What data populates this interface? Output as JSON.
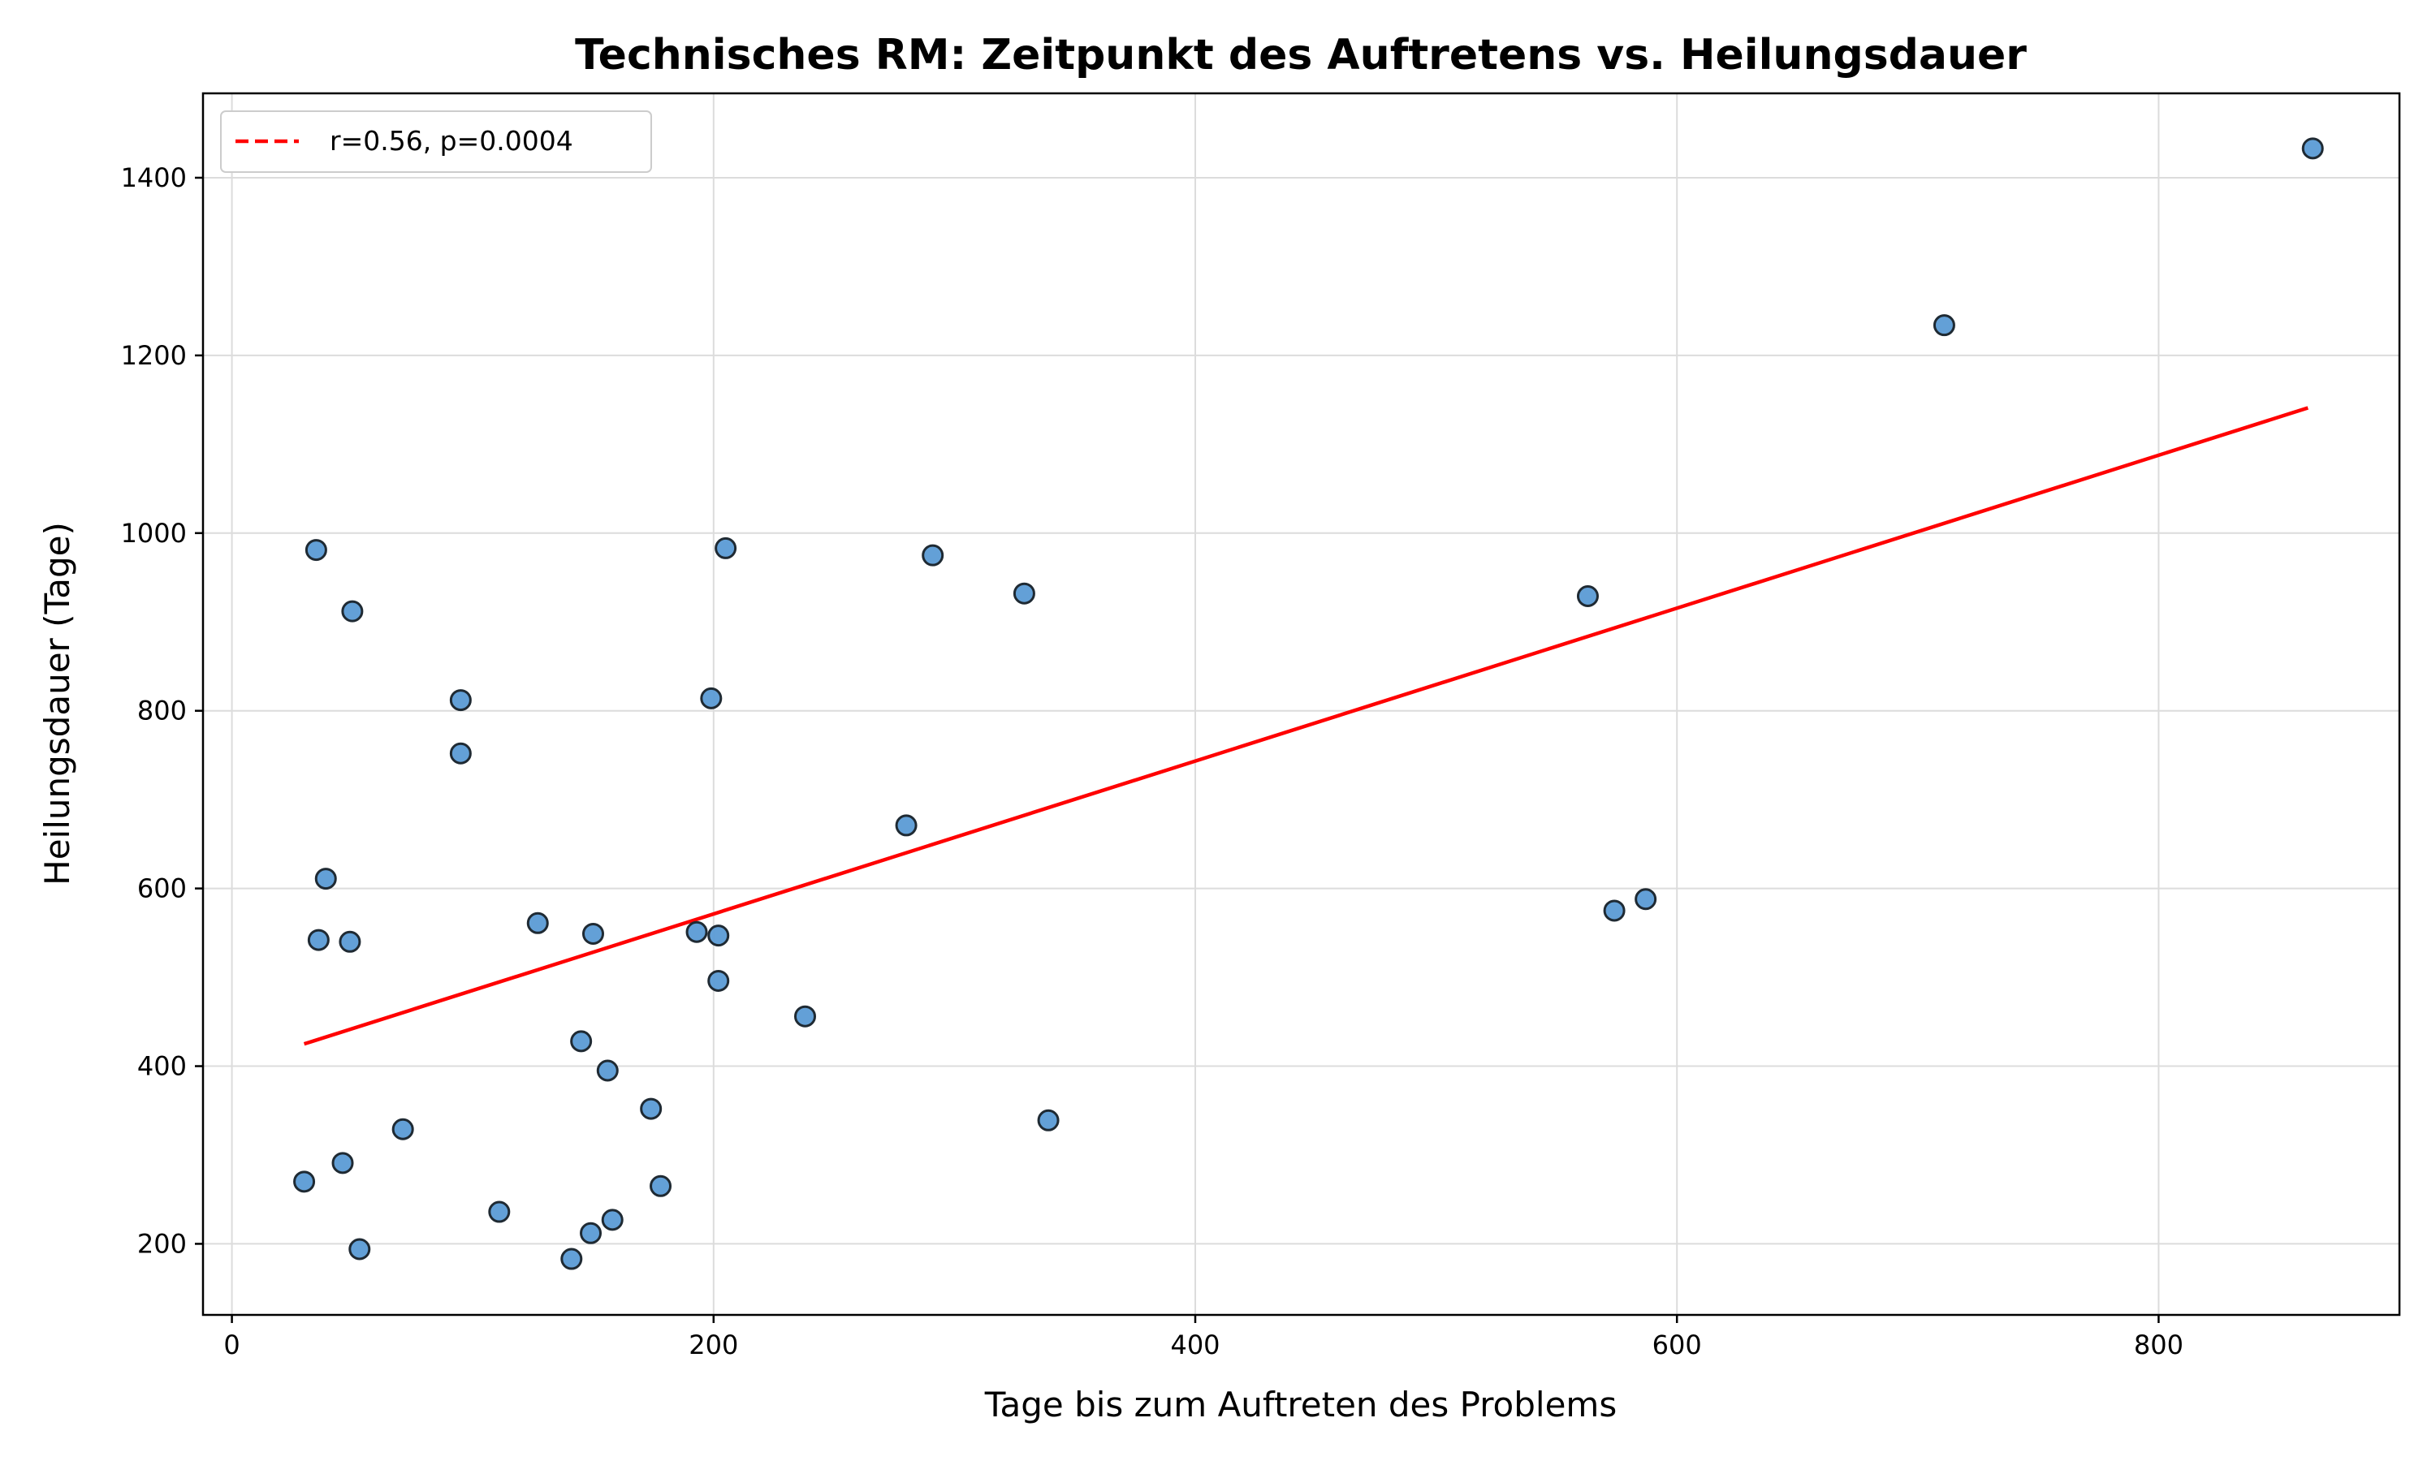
{
  "chart_data": {
    "type": "scatter",
    "title": "Technisches RM: Zeitpunkt des Auftretens vs. Heilungsdauer",
    "xlabel": "Tage bis zum Auftreten des Problems",
    "ylabel": "Heilungsdauer (Tage)",
    "xlim": [
      -12,
      900
    ],
    "ylim": [
      120,
      1495
    ],
    "xticks": [
      0,
      200,
      400,
      600,
      800
    ],
    "yticks": [
      200,
      400,
      600,
      800,
      1000,
      1200,
      1400
    ],
    "grid": true,
    "legend_position": "top-left",
    "point_color": "#5b9bd5",
    "point_edge_color": "#1f2a33",
    "trend_color": "#ff0000",
    "points": [
      {
        "x": 30,
        "y": 270
      },
      {
        "x": 35,
        "y": 981
      },
      {
        "x": 36,
        "y": 542
      },
      {
        "x": 39,
        "y": 611
      },
      {
        "x": 46,
        "y": 291
      },
      {
        "x": 49,
        "y": 540
      },
      {
        "x": 50,
        "y": 912
      },
      {
        "x": 53,
        "y": 194
      },
      {
        "x": 71,
        "y": 329
      },
      {
        "x": 95,
        "y": 812
      },
      {
        "x": 95,
        "y": 752
      },
      {
        "x": 111,
        "y": 236
      },
      {
        "x": 127,
        "y": 561
      },
      {
        "x": 141,
        "y": 183
      },
      {
        "x": 145,
        "y": 428
      },
      {
        "x": 149,
        "y": 212
      },
      {
        "x": 150,
        "y": 549
      },
      {
        "x": 156,
        "y": 395
      },
      {
        "x": 158,
        "y": 227
      },
      {
        "x": 174,
        "y": 352
      },
      {
        "x": 178,
        "y": 265
      },
      {
        "x": 193,
        "y": 551
      },
      {
        "x": 199,
        "y": 814
      },
      {
        "x": 202,
        "y": 547
      },
      {
        "x": 202,
        "y": 496
      },
      {
        "x": 205,
        "y": 983
      },
      {
        "x": 238,
        "y": 456
      },
      {
        "x": 280,
        "y": 671
      },
      {
        "x": 291,
        "y": 975
      },
      {
        "x": 329,
        "y": 932
      },
      {
        "x": 339,
        "y": 339
      },
      {
        "x": 563,
        "y": 929
      },
      {
        "x": 574,
        "y": 575
      },
      {
        "x": 587,
        "y": 588
      },
      {
        "x": 711,
        "y": 1234
      },
      {
        "x": 864,
        "y": 1433
      }
    ],
    "trend_line": {
      "label": "r=0.56, p=0.0004",
      "x": [
        30,
        862
      ],
      "y": [
        425,
        1141
      ]
    }
  }
}
